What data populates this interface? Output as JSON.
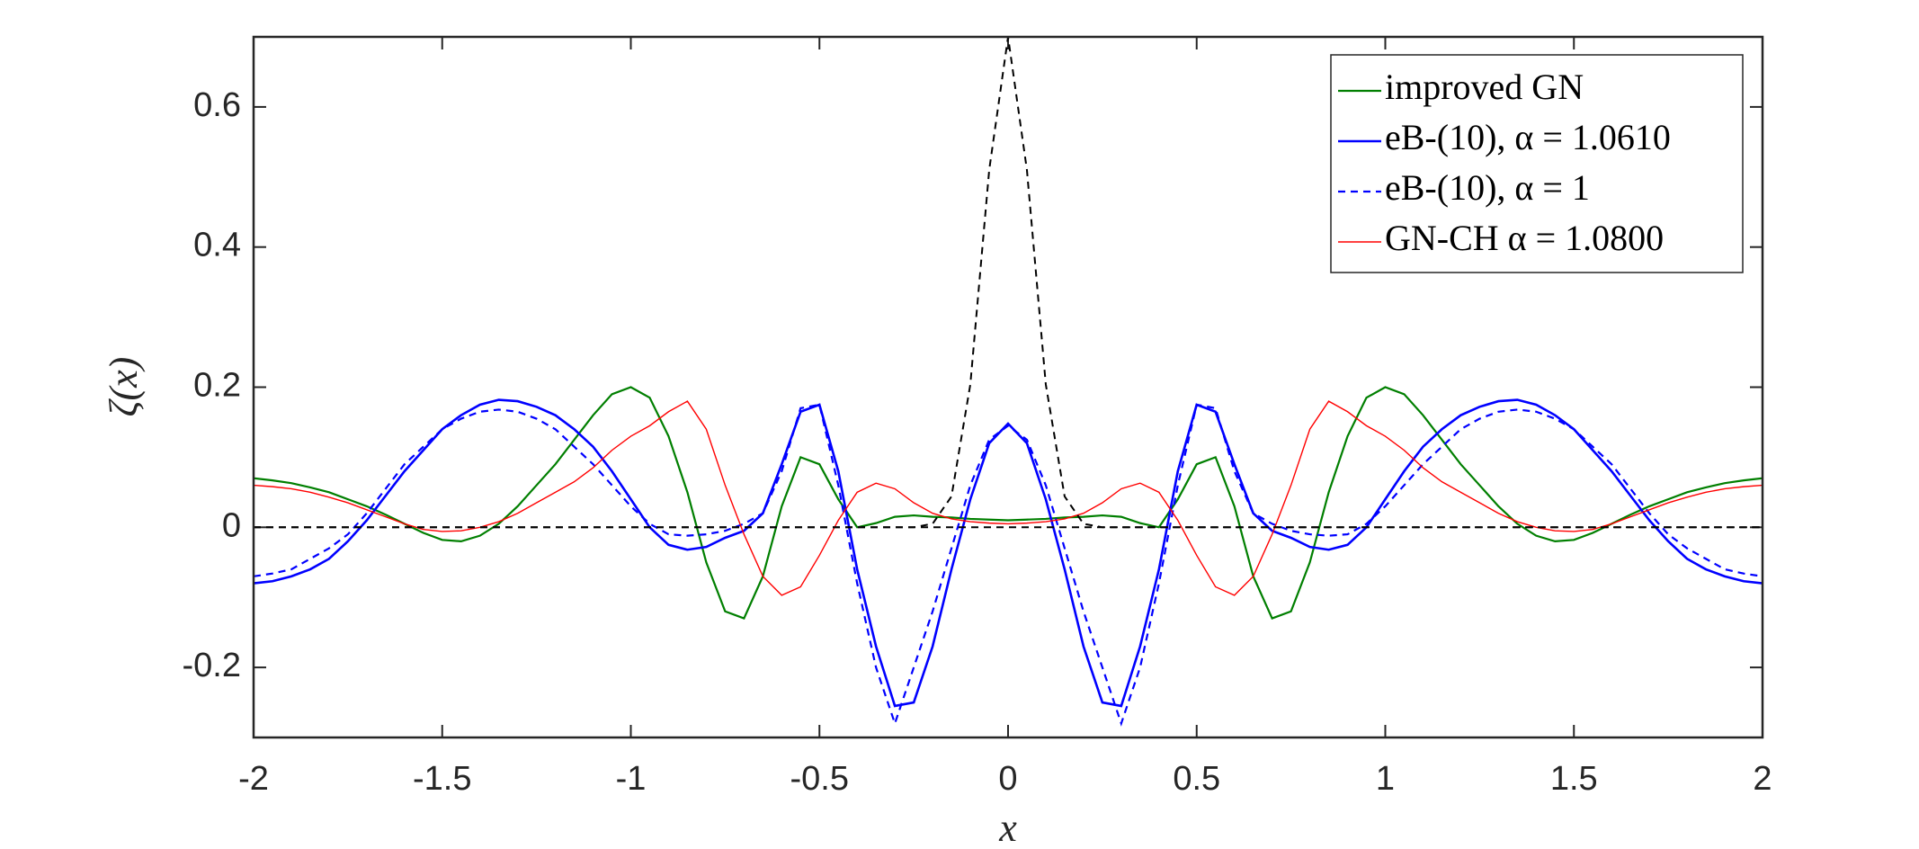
{
  "chart_data": {
    "type": "line",
    "xlabel": "x",
    "ylabel": "ζ(x)",
    "xlim": [
      -2,
      2
    ],
    "ylim": [
      -0.3,
      0.7
    ],
    "xticks": [
      -2,
      -1.5,
      -1,
      -0.5,
      0,
      0.5,
      1,
      1.5,
      2
    ],
    "yticks": [
      -0.2,
      0,
      0.2,
      0.4,
      0.6
    ],
    "legend": "top-right",
    "x": [
      -2,
      -1.95,
      -1.9,
      -1.85,
      -1.8,
      -1.75,
      -1.7,
      -1.65,
      -1.6,
      -1.55,
      -1.5,
      -1.45,
      -1.4,
      -1.35,
      -1.3,
      -1.25,
      -1.2,
      -1.15,
      -1.1,
      -1.05,
      -1,
      -0.95,
      -0.9,
      -0.85,
      -0.8,
      -0.75,
      -0.7,
      -0.65,
      -0.6,
      -0.55,
      -0.5,
      -0.45,
      -0.4,
      -0.35,
      -0.3,
      -0.25,
      -0.2,
      -0.15,
      -0.1,
      -0.05,
      0,
      0.05,
      0.1,
      0.15,
      0.2,
      0.25,
      0.3,
      0.35,
      0.4,
      0.45,
      0.5,
      0.55,
      0.6,
      0.65,
      0.7,
      0.75,
      0.8,
      0.85,
      0.9,
      0.95,
      1,
      1.05,
      1.1,
      1.15,
      1.2,
      1.25,
      1.3,
      1.35,
      1.4,
      1.45,
      1.5,
      1.55,
      1.6,
      1.65,
      1.7,
      1.75,
      1.8,
      1.85,
      1.9,
      1.95,
      2
    ],
    "series": [
      {
        "name": "improved GN",
        "color": "#007f00",
        "dashed": false,
        "width": 2.2,
        "values": [
          0.07,
          0.067,
          0.063,
          0.057,
          0.05,
          0.04,
          0.03,
          0.018,
          0.005,
          -0.008,
          -0.018,
          -0.02,
          -0.012,
          0.005,
          0.03,
          0.06,
          0.09,
          0.125,
          0.16,
          0.19,
          0.2,
          0.185,
          0.13,
          0.05,
          -0.05,
          -0.12,
          -0.13,
          -0.07,
          0.03,
          0.1,
          0.09,
          0.04,
          0,
          0.006,
          0.015,
          0.017,
          0.015,
          0.014,
          0.012,
          0.011,
          0.01,
          0.011,
          0.012,
          0.014,
          0.015,
          0.017,
          0.015,
          0.006,
          0,
          0.04,
          0.09,
          0.1,
          0.03,
          -0.07,
          -0.13,
          -0.12,
          -0.05,
          0.05,
          0.13,
          0.185,
          0.2,
          0.19,
          0.16,
          0.125,
          0.09,
          0.06,
          0.03,
          0.005,
          -0.012,
          -0.02,
          -0.018,
          -0.008,
          0.005,
          0.018,
          0.03,
          0.04,
          0.05,
          0.057,
          0.063,
          0.067,
          0.07
        ]
      },
      {
        "name": "eB-(10), α = 1.0610",
        "color": "#0000ff",
        "dashed": false,
        "width": 2.6,
        "values": [
          -0.08,
          -0.077,
          -0.07,
          -0.06,
          -0.045,
          -0.02,
          0.01,
          0.045,
          0.08,
          0.11,
          0.14,
          0.16,
          0.175,
          0.182,
          0.18,
          0.172,
          0.16,
          0.14,
          0.115,
          0.08,
          0.04,
          0,
          -0.025,
          -0.032,
          -0.028,
          -0.015,
          -0.005,
          0.02,
          0.09,
          0.165,
          0.175,
          0.08,
          -0.06,
          -0.17,
          -0.255,
          -0.25,
          -0.17,
          -0.06,
          0.04,
          0.12,
          0.148,
          0.12,
          0.04,
          -0.06,
          -0.17,
          -0.25,
          -0.255,
          -0.17,
          -0.06,
          0.08,
          0.175,
          0.165,
          0.09,
          0.02,
          -0.005,
          -0.015,
          -0.028,
          -0.032,
          -0.025,
          0,
          0.04,
          0.08,
          0.115,
          0.14,
          0.16,
          0.172,
          0.18,
          0.182,
          0.175,
          0.16,
          0.14,
          0.11,
          0.08,
          0.045,
          0.01,
          -0.02,
          -0.045,
          -0.06,
          -0.07,
          -0.077,
          -0.08
        ]
      },
      {
        "name": "eB-(10), α = 1",
        "color": "#0000ff",
        "dashed": true,
        "width": 2.2,
        "values": [
          -0.07,
          -0.066,
          -0.06,
          -0.045,
          -0.03,
          -0.01,
          0.02,
          0.055,
          0.09,
          0.115,
          0.14,
          0.155,
          0.165,
          0.168,
          0.165,
          0.155,
          0.14,
          0.115,
          0.09,
          0.06,
          0.03,
          0.005,
          -0.01,
          -0.012,
          -0.01,
          -0.005,
          0.005,
          0.02,
          0.08,
          0.17,
          0.175,
          0.06,
          -0.08,
          -0.2,
          -0.28,
          -0.2,
          -0.12,
          -0.03,
          0.06,
          0.125,
          0.145,
          0.125,
          0.06,
          -0.03,
          -0.12,
          -0.2,
          -0.28,
          -0.2,
          -0.08,
          0.06,
          0.175,
          0.17,
          0.08,
          0.02,
          0.005,
          -0.005,
          -0.01,
          -0.012,
          -0.01,
          0.005,
          0.03,
          0.06,
          0.09,
          0.115,
          0.14,
          0.155,
          0.165,
          0.168,
          0.165,
          0.155,
          0.14,
          0.115,
          0.09,
          0.055,
          0.02,
          -0.01,
          -0.03,
          -0.045,
          -0.06,
          -0.066,
          -0.07
        ]
      },
      {
        "name": "GN-CH α = 1.0800",
        "color": "#ff0000",
        "dashed": false,
        "width": 1.4,
        "values": [
          0.06,
          0.058,
          0.055,
          0.05,
          0.043,
          0.035,
          0.025,
          0.015,
          0.005,
          -0.003,
          -0.006,
          -0.005,
          0,
          0.008,
          0.02,
          0.035,
          0.05,
          0.065,
          0.085,
          0.11,
          0.13,
          0.145,
          0.165,
          0.18,
          0.14,
          0.06,
          -0.01,
          -0.07,
          -0.097,
          -0.085,
          -0.04,
          0.01,
          0.05,
          0.063,
          0.055,
          0.035,
          0.02,
          0.012,
          0.008,
          0.006,
          0.005,
          0.006,
          0.008,
          0.012,
          0.02,
          0.035,
          0.055,
          0.063,
          0.05,
          0.01,
          -0.04,
          -0.085,
          -0.097,
          -0.07,
          -0.01,
          0.06,
          0.14,
          0.18,
          0.165,
          0.145,
          0.13,
          0.11,
          0.085,
          0.065,
          0.05,
          0.035,
          0.02,
          0.008,
          0,
          -0.005,
          -0.006,
          -0.003,
          0.005,
          0.015,
          0.025,
          0.035,
          0.043,
          0.05,
          0.055,
          0.058,
          0.06
        ]
      },
      {
        "color": "#000000",
        "dashed": true,
        "width": 2,
        "values": [
          0,
          0,
          0,
          0,
          0,
          0,
          0,
          0,
          0,
          0,
          0,
          0,
          0,
          0,
          0,
          0,
          0,
          0,
          0,
          0,
          0,
          0,
          0,
          0,
          0,
          0,
          0,
          0,
          0,
          0,
          0,
          0,
          0,
          0,
          0,
          0,
          0.005,
          0.044,
          0.204,
          0.51,
          0.7,
          0.51,
          0.204,
          0.044,
          0.005,
          0,
          0,
          0,
          0,
          0,
          0,
          0,
          0,
          0,
          0,
          0,
          0,
          0,
          0,
          0,
          0,
          0,
          0,
          0,
          0,
          0,
          0,
          0,
          0,
          0,
          0,
          0,
          0,
          0,
          0,
          0,
          0,
          0,
          0,
          0,
          0
        ]
      },
      {
        "color": "#000000",
        "dashed": true,
        "width": 2,
        "x": [
          -2,
          2
        ],
        "values": [
          0,
          0
        ]
      }
    ]
  }
}
